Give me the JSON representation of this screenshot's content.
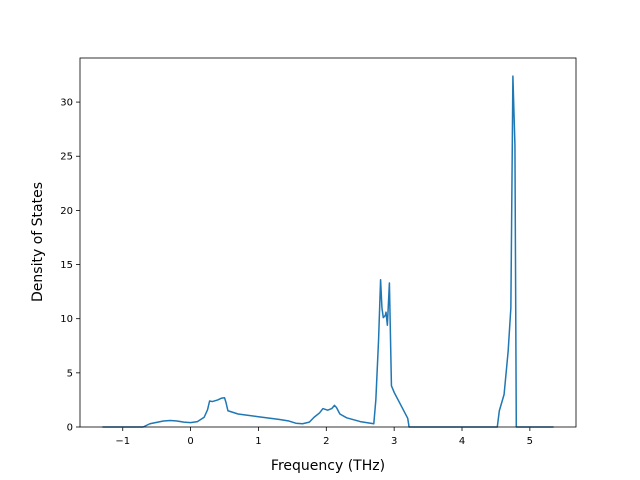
{
  "chart_data": {
    "type": "line",
    "xlabel": "Frequency (THz)",
    "ylabel": "Density of States",
    "xlim": [
      -1.63,
      5.68
    ],
    "ylim": [
      0,
      34.07
    ],
    "xticks": [
      {
        "value": -1,
        "label": "−1"
      },
      0,
      1,
      2,
      3,
      4,
      5
    ],
    "yticks": [
      0,
      5,
      10,
      15,
      20,
      25,
      30
    ],
    "grid": false,
    "x": [
      -1.3,
      -0.7,
      -0.6,
      -0.4,
      -0.3,
      -0.2,
      -0.1,
      0,
      0.1,
      0.2,
      0.25,
      0.28,
      0.32,
      0.4,
      0.45,
      0.5,
      0.52,
      0.55,
      0.7,
      1.0,
      1.3,
      1.45,
      1.55,
      1.65,
      1.75,
      1.82,
      1.9,
      1.95,
      2.02,
      2.08,
      2.12,
      2.15,
      2.2,
      2.3,
      2.5,
      2.7,
      2.73,
      2.77,
      2.8,
      2.82,
      2.84,
      2.87,
      2.88,
      2.9,
      2.93,
      2.96,
      3.0,
      3.1,
      3.2,
      3.22,
      4.0,
      4.52,
      4.55,
      4.62,
      4.68,
      4.72,
      4.75,
      4.78,
      4.8,
      5.35
    ],
    "series": [
      {
        "color": "#1f77b4",
        "values": [
          0,
          0,
          0.3,
          0.55,
          0.6,
          0.55,
          0.45,
          0.4,
          0.5,
          0.9,
          1.6,
          2.4,
          2.35,
          2.5,
          2.65,
          2.7,
          2.3,
          1.5,
          1.2,
          0.95,
          0.7,
          0.55,
          0.35,
          0.3,
          0.45,
          0.9,
          1.3,
          1.7,
          1.55,
          1.7,
          2.0,
          1.8,
          1.2,
          0.85,
          0.5,
          0.3,
          2.5,
          8,
          13.6,
          11,
          10.1,
          10.3,
          10.6,
          9.4,
          13.3,
          3.8,
          3.2,
          2.0,
          0.8,
          0,
          0,
          0,
          1.5,
          3,
          7,
          11,
          32.4,
          26,
          0,
          0
        ]
      }
    ]
  }
}
